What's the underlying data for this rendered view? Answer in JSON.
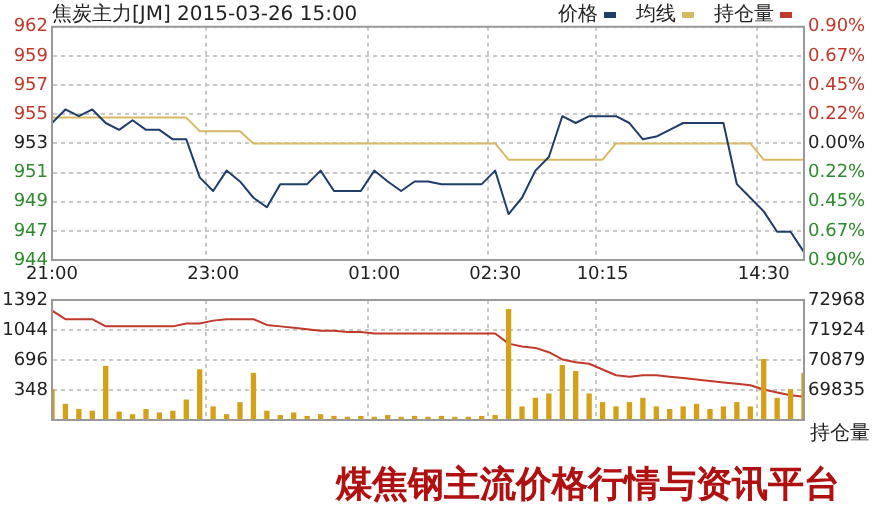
{
  "chart_data": [
    {
      "type": "line",
      "title": "焦炭主力[JM] 2015-03-26 15:00",
      "legend": "top right",
      "grid": true,
      "marker": "none",
      "categories": [
        "21:00",
        null,
        null,
        null,
        null,
        null,
        null,
        null,
        null,
        null,
        null,
        null,
        "23:00",
        null,
        null,
        null,
        null,
        null,
        null,
        null,
        null,
        null,
        null,
        null,
        "01:00",
        null,
        null,
        null,
        null,
        null,
        null,
        null,
        null,
        "02:30",
        null,
        null,
        null,
        null,
        null,
        null,
        null,
        "10:15",
        null,
        null,
        null,
        null,
        null,
        null,
        null,
        null,
        null,
        null,
        null,
        "14:30",
        null,
        null,
        null
      ],
      "ylim": [
        944.42,
        961.58
      ],
      "yticks": [
        {
          "value": 944.42,
          "label": "944"
        },
        {
          "value": 946.56,
          "label": "947"
        },
        {
          "value": 948.71,
          "label": "949"
        },
        {
          "value": 950.85,
          "label": "951"
        },
        953,
        {
          "value": 955.15,
          "label": "955"
        },
        {
          "value": 957.29,
          "label": "957"
        },
        {
          "value": 959.44,
          "label": "959"
        },
        {
          "value": 961.58,
          "label": "962"
        }
      ],
      "y2lim": [
        -0.9,
        0.9
      ],
      "y2ticks": [
        {
          "value": -0.9,
          "label": "0.90%"
        },
        {
          "value": -0.675,
          "label": "0.67%"
        },
        {
          "value": -0.45,
          "label": "0.45%"
        },
        {
          "value": -0.225,
          "label": "0.22%"
        },
        {
          "value": 0,
          "label": "0.00%"
        },
        {
          "value": 0.225,
          "label": "0.22%"
        },
        {
          "value": 0.45,
          "label": "0.45%"
        },
        {
          "value": 0.675,
          "label": "0.67%"
        },
        {
          "value": 0.9,
          "label": "0.90%"
        }
      ],
      "series": [
        {
          "name": "价格",
          "color": "#1e3d6b",
          "values": [
            954.5,
            955.5,
            955,
            955.5,
            954.5,
            954,
            954.7,
            954,
            954,
            953.3,
            953.3,
            950.5,
            949.5,
            951,
            950.2,
            949,
            948.3,
            950,
            950,
            950,
            951,
            949.5,
            949.5,
            949.5,
            951,
            950.2,
            949.5,
            950.2,
            950.2,
            950,
            950,
            950,
            950,
            951,
            947.8,
            949,
            951,
            952,
            955,
            954.5,
            955,
            955,
            955,
            954.5,
            953.3,
            953.5,
            954,
            954.5,
            954.5,
            954.5,
            954.5,
            950,
            949,
            948,
            946.5,
            946.5,
            945
          ]
        },
        {
          "name": "均线",
          "color": "#d9b865",
          "values": [
            954.9,
            954.9,
            954.9,
            954.9,
            954.9,
            954.9,
            954.9,
            954.9,
            954.9,
            954.9,
            954.9,
            953.9,
            953.9,
            953.9,
            953.9,
            953,
            953,
            953,
            953,
            953,
            953,
            953,
            953,
            953,
            953,
            953,
            953,
            953,
            953,
            953,
            953,
            953,
            953,
            953,
            951.8,
            951.8,
            951.8,
            951.8,
            951.8,
            951.8,
            951.8,
            951.8,
            953,
            953,
            953,
            953,
            953,
            953,
            953,
            953,
            953,
            953,
            953,
            951.8,
            951.8,
            951.8,
            951.8
          ]
        }
      ]
    },
    {
      "type": "bar",
      "legend": "top right",
      "grid": true,
      "marker": "none",
      "tick_labels": "y",
      "y2label": "持仓量",
      "annotations": [
        "煤焦钢主流价格行情与资讯平台"
      ],
      "ylim": [
        0,
        1392
      ],
      "yticks": [
        348,
        696,
        1044,
        1392
      ],
      "y2lim": [
        68791,
        72968
      ],
      "y2ticks": [
        69835,
        70879,
        71924,
        72968
      ],
      "series": [
        {
          "color": "#d4a017",
          "values": [
            350,
            180,
            120,
            100,
            620,
            90,
            60,
            120,
            80,
            100,
            230,
            580,
            150,
            60,
            200,
            540,
            100,
            50,
            80,
            40,
            60,
            40,
            30,
            40,
            30,
            50,
            30,
            40,
            30,
            40,
            30,
            30,
            40,
            50,
            1280,
            150,
            250,
            300,
            630,
            560,
            300,
            200,
            150,
            200,
            250,
            150,
            120,
            150,
            180,
            120,
            150,
            200,
            150,
            700,
            250,
            350,
            540
          ]
        },
        {
          "type": "line",
          "name": "持仓量",
          "axis": "y2",
          "color": "#c0392b",
          "values": [
            72600,
            72300,
            72300,
            72300,
            72050,
            72050,
            72050,
            72050,
            72050,
            72050,
            72150,
            72150,
            72250,
            72300,
            72300,
            72300,
            72100,
            72050,
            72000,
            71950,
            71900,
            71900,
            71850,
            71850,
            71800,
            71800,
            71800,
            71800,
            71800,
            71800,
            71800,
            71800,
            71800,
            71800,
            71450,
            71350,
            71300,
            71150,
            70900,
            70800,
            70750,
            70550,
            70350,
            70300,
            70350,
            70350,
            70300,
            70250,
            70200,
            70150,
            70100,
            70050,
            70000,
            69850,
            69750,
            69650,
            69600
          ]
        }
      ]
    }
  ]
}
